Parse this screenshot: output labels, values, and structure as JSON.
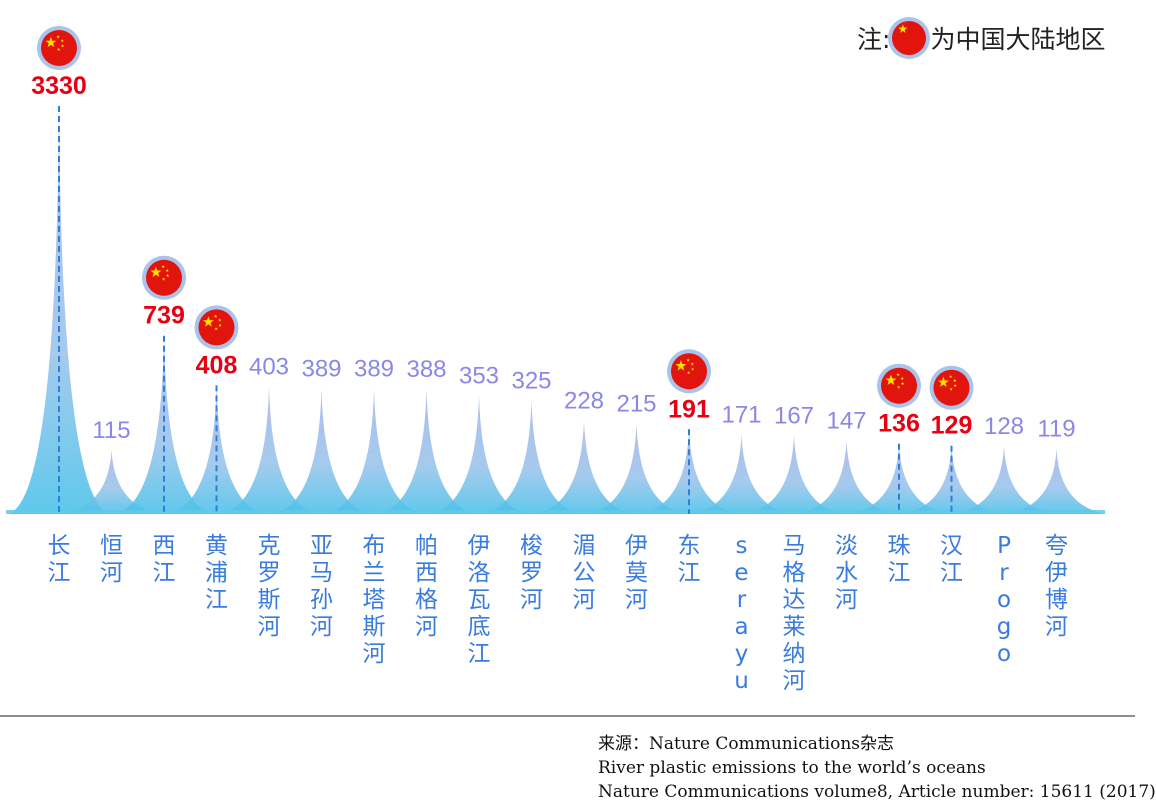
{
  "legend": {
    "prefix": "注:",
    "suffix": "为中国大陆地区",
    "flag_icon": "china-flag-icon"
  },
  "source": {
    "line1": "来源：Nature Communications杂志",
    "line2": "River plastic emissions to the world’s oceans",
    "line3": "Nature Communications volume8, Article number: 15611 (2017)"
  },
  "colors": {
    "china_value": "#e60012",
    "other_value": "#8b87e6",
    "river_label": "#3a7be0",
    "peak_top": "#aab6ea",
    "peak_base": "#4cc3ea",
    "flag_red": "#e1140e",
    "flag_ring": "#a9c3ea",
    "flag_star": "#ffde00"
  },
  "chart_data": {
    "type": "area",
    "categories": [
      "长江",
      "恒河",
      "西江",
      "黄浦江",
      "克罗斯河",
      "亚马孙河",
      "布兰塔斯河",
      "帕西格河",
      "伊洛瓦底江",
      "梭罗河",
      "湄公河",
      "伊莫河",
      "东江",
      "serayu",
      "马格达莱纳河",
      "淡水河",
      "珠江",
      "汉江",
      "Progo",
      "夸伊博河"
    ],
    "values": [
      3330,
      115,
      739,
      408,
      403,
      389,
      389,
      388,
      353,
      325,
      228,
      215,
      191,
      171,
      167,
      147,
      136,
      129,
      128,
      119
    ],
    "china_mainland": [
      true,
      false,
      true,
      true,
      false,
      false,
      false,
      false,
      false,
      false,
      false,
      false,
      true,
      false,
      false,
      false,
      true,
      true,
      false,
      false
    ]
  }
}
